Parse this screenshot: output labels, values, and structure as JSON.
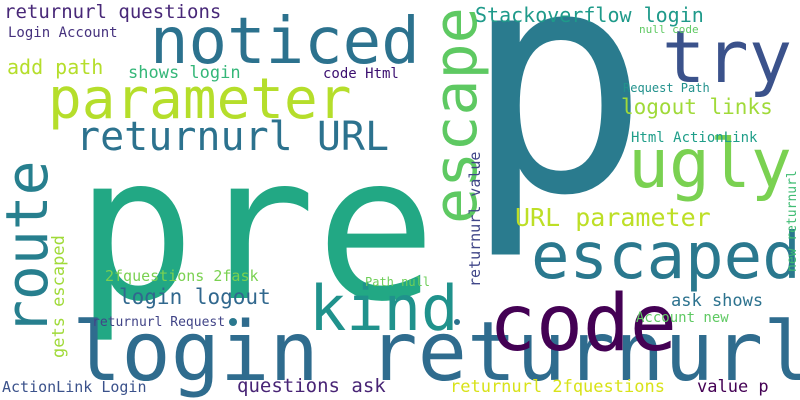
{
  "words": [
    {
      "id": "p",
      "text": "p",
      "color": "#2a7b8e"
    },
    {
      "id": "pre",
      "text": "pre",
      "color": "#22a884"
    },
    {
      "id": "login-returnurl",
      "text": "login returnurl",
      "color": "#2f6c8e"
    },
    {
      "id": "code-big",
      "text": "code",
      "color": "#440154"
    },
    {
      "id": "noticed",
      "text": "noticed",
      "color": "#2c728e"
    },
    {
      "id": "parameter",
      "text": "parameter",
      "color": "#b5de2b"
    },
    {
      "id": "escape",
      "text": "escape",
      "color": "#5ec962"
    },
    {
      "id": "try",
      "text": "try",
      "color": "#3b528b"
    },
    {
      "id": "ugly",
      "text": "ugly",
      "color": "#7ad151"
    },
    {
      "id": "escaped",
      "text": "escaped",
      "color": "#2a788e"
    },
    {
      "id": "kind",
      "text": "kind",
      "color": "#20928c"
    },
    {
      "id": "route",
      "text": "route",
      "color": "#277f8e"
    },
    {
      "id": "returnurl-url",
      "text": "returnurl URL",
      "color": "#2c728e"
    },
    {
      "id": "stackoverflow-login",
      "text": "Stackoverflow login",
      "color": "#1f9a8a"
    },
    {
      "id": "returnurl-questions",
      "text": "returnurl questions",
      "color": "#482878"
    },
    {
      "id": "login-account",
      "text": "Login Account",
      "color": "#46327e"
    },
    {
      "id": "add-path",
      "text": "add path",
      "color": "#b5de2b"
    },
    {
      "id": "shows-login",
      "text": "shows login",
      "color": "#35b779"
    },
    {
      "id": "code-html",
      "text": "code Html",
      "color": "#3b0f70"
    },
    {
      "id": "null-code",
      "text": "null code",
      "color": "#5ec962"
    },
    {
      "id": "request-path",
      "text": "Request Path",
      "color": "#21918c"
    },
    {
      "id": "logout-links",
      "text": "logout links",
      "color": "#a0da39"
    },
    {
      "id": "html-actionlink",
      "text": "Html ActionLink",
      "color": "#1f9e89"
    },
    {
      "id": "url-parameter",
      "text": "URL parameter",
      "color": "#bddf26"
    },
    {
      "id": "login-logout",
      "text": "login logout",
      "color": "#31688e"
    },
    {
      "id": "2fquestions-2fask",
      "text": "2fquestions 2fask",
      "color": "#7ad151"
    },
    {
      "id": "gets-escaped",
      "text": "gets escaped",
      "color": "#a0da39"
    },
    {
      "id": "returnurl-value",
      "text": "returnurl value",
      "color": "#404688"
    },
    {
      "id": "new-returnurl",
      "text": "new returnurl",
      "color": "#3fbc73"
    },
    {
      "id": "path-null",
      "text": "Path null",
      "color": "#6ece58"
    },
    {
      "id": "returnurl-request",
      "text": "returnurl Request",
      "color": "#414487"
    },
    {
      "id": "ask-shows",
      "text": "ask shows",
      "color": "#2c728e"
    },
    {
      "id": "account-new",
      "text": "Account new",
      "color": "#5ec962"
    },
    {
      "id": "actionlink-login",
      "text": "ActionLink Login",
      "color": "#3b528b"
    },
    {
      "id": "questions-ask",
      "text": "questions ask",
      "color": "#482475"
    },
    {
      "id": "returnurl-2fquestions",
      "text": "returnurl 2fquestions",
      "color": "#d8e219"
    },
    {
      "id": "value-p",
      "text": "value p",
      "color": "#440154"
    },
    {
      "id": "dot-1",
      "text": "",
      "color": "#2a788e"
    },
    {
      "id": "dot-2",
      "text": "",
      "color": "#2c728e"
    }
  ]
}
